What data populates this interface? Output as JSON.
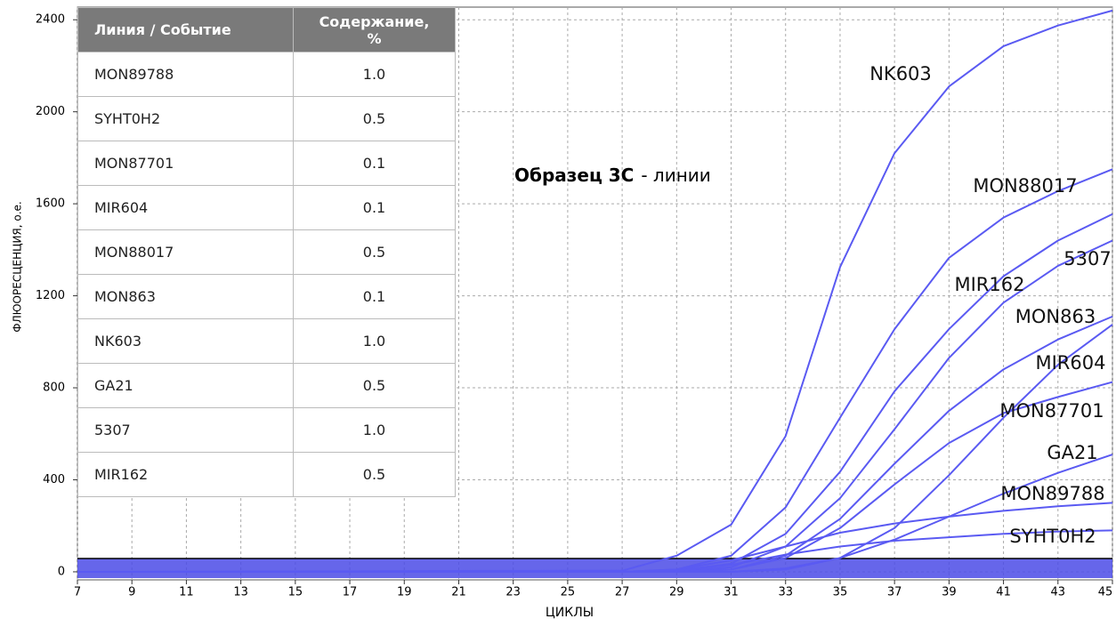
{
  "chart_data": {
    "type": "line",
    "x_label": "ЦИКЛЫ",
    "y_label": "ФЛЮОРЕСЦЕНЦИЯ, о.е.",
    "annotation": {
      "bold": "Образец 3С",
      "rest": "- линии"
    },
    "x": [
      7,
      27,
      29,
      31,
      33,
      35,
      37,
      39,
      41,
      43,
      45
    ],
    "series": [
      {
        "name": "NK603",
        "color": "#5a5af2",
        "values": [
          0,
          5,
          70,
          205,
          590,
          1325,
          1820,
          2110,
          2285,
          2375,
          2440
        ]
      },
      {
        "name": "MON88017",
        "color": "#5a5af2",
        "values": [
          0,
          0,
          10,
          70,
          280,
          670,
          1055,
          1365,
          1540,
          1655,
          1750
        ]
      },
      {
        "name": "5307",
        "color": "#5a5af2",
        "values": [
          0,
          0,
          5,
          35,
          165,
          435,
          785,
          1055,
          1285,
          1440,
          1555
        ]
      },
      {
        "name": "MIR162",
        "color": "#5a5af2",
        "values": [
          0,
          0,
          0,
          20,
          110,
          320,
          620,
          930,
          1170,
          1330,
          1440
        ]
      },
      {
        "name": "MON863",
        "color": "#5a5af2",
        "values": [
          0,
          0,
          0,
          10,
          70,
          230,
          470,
          700,
          880,
          1010,
          1110
        ]
      },
      {
        "name": "MIR604",
        "color": "#5a5af2",
        "values": [
          0,
          0,
          0,
          0,
          10,
          60,
          190,
          420,
          670,
          900,
          1075
        ]
      },
      {
        "name": "MON87701",
        "color": "#5a5af2",
        "values": [
          0,
          0,
          0,
          10,
          60,
          190,
          380,
          560,
          690,
          760,
          825
        ]
      },
      {
        "name": "GA21",
        "color": "#5a5af2",
        "values": [
          0,
          0,
          0,
          0,
          15,
          60,
          140,
          240,
          340,
          430,
          510
        ]
      },
      {
        "name": "MON89788",
        "color": "#5a5af2",
        "values": [
          0,
          0,
          10,
          50,
          110,
          170,
          210,
          240,
          265,
          285,
          300
        ]
      },
      {
        "name": "SYHT0H2",
        "color": "#5a5af2",
        "values": [
          0,
          0,
          5,
          30,
          75,
          110,
          135,
          150,
          165,
          175,
          180
        ]
      }
    ],
    "xlim": [
      7,
      45
    ],
    "xticks": [
      7,
      9,
      11,
      13,
      15,
      17,
      19,
      21,
      23,
      25,
      27,
      29,
      31,
      33,
      35,
      37,
      39,
      41,
      43,
      45
    ],
    "ylim": [
      -35,
      2455
    ],
    "yticks": [
      0,
      400,
      800,
      1200,
      1600,
      2000,
      2400
    ],
    "grid": true
  },
  "table": {
    "header": [
      "Линия / Событие",
      "Содержание, %"
    ],
    "rows": [
      [
        "MON89788",
        "1.0"
      ],
      [
        "SYHT0H2",
        "0.5"
      ],
      [
        "MON87701",
        "0.1"
      ],
      [
        "MIR604",
        "0.1"
      ],
      [
        "MON88017",
        "0.5"
      ],
      [
        "MON863",
        "0.1"
      ],
      [
        "NK603",
        "1.0"
      ],
      [
        "GA21",
        "0.5"
      ],
      [
        "5307",
        "1.0"
      ],
      [
        "MIR162",
        "0.5"
      ]
    ]
  }
}
